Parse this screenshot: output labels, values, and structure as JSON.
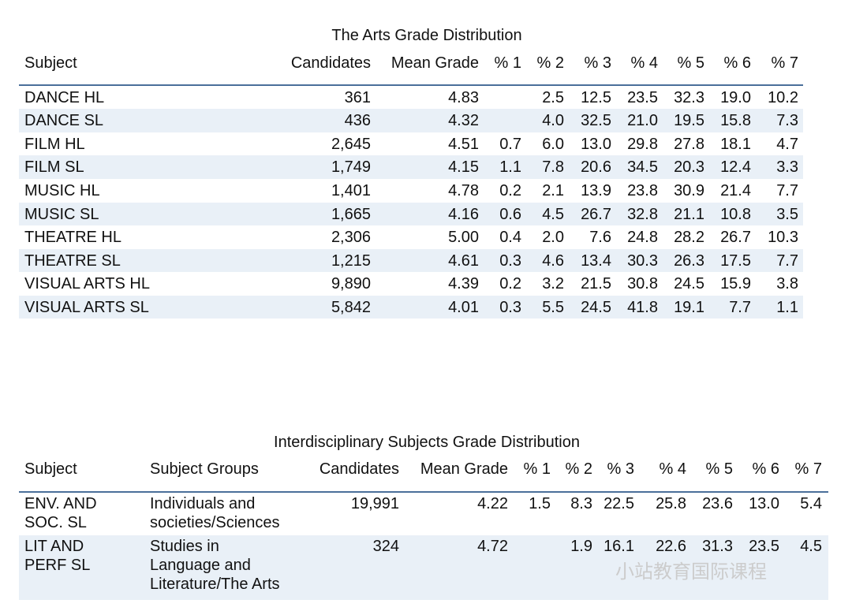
{
  "tables": [
    {
      "title": "The Arts Grade Distribution",
      "header": [
        "Subject",
        "Candidates",
        "Mean Grade",
        "% 1",
        "% 2",
        "% 3",
        "% 4",
        "% 5",
        "% 6",
        "% 7"
      ],
      "rows": [
        [
          "DANCE HL",
          "361",
          "4.83",
          null,
          "2.5",
          "12.5",
          "23.5",
          "32.3",
          "19.0",
          "10.2"
        ],
        [
          "DANCE SL",
          "436",
          "4.32",
          null,
          "4.0",
          "32.5",
          "21.0",
          "19.5",
          "15.8",
          "7.3"
        ],
        [
          "FILM HL",
          "2,645",
          "4.51",
          "0.7",
          "6.0",
          "13.0",
          "29.8",
          "27.8",
          "18.1",
          "4.7"
        ],
        [
          "FILM SL",
          "1,749",
          "4.15",
          "1.1",
          "7.8",
          "20.6",
          "34.5",
          "20.3",
          "12.4",
          "3.3"
        ],
        [
          "MUSIC HL",
          "1,401",
          "4.78",
          "0.2",
          "2.1",
          "13.9",
          "23.8",
          "30.9",
          "21.4",
          "7.7"
        ],
        [
          "MUSIC SL",
          "1,665",
          "4.16",
          "0.6",
          "4.5",
          "26.7",
          "32.8",
          "21.1",
          "10.8",
          "3.5"
        ],
        [
          "THEATRE HL",
          "2,306",
          "5.00",
          "0.4",
          "2.0",
          "7.6",
          "24.8",
          "28.2",
          "26.7",
          "10.3"
        ],
        [
          "THEATRE SL",
          "1,215",
          "4.61",
          "0.3",
          "4.6",
          "13.4",
          "30.3",
          "26.3",
          "17.5",
          "7.7"
        ],
        [
          "VISUAL ARTS HL",
          "9,890",
          "4.39",
          "0.2",
          "3.2",
          "21.5",
          "30.8",
          "24.5",
          "15.9",
          "3.8"
        ],
        [
          "VISUAL ARTS SL",
          "5,842",
          "4.01",
          "0.3",
          "5.5",
          "24.5",
          "41.8",
          "19.1",
          "7.7",
          "1.1"
        ]
      ]
    },
    {
      "title": "Interdisciplinary Subjects Grade Distribution",
      "header": [
        "Subject",
        "Subject Groups",
        "Candidates",
        "Mean Grade",
        "% 1",
        "% 2",
        "% 3",
        "% 4",
        "% 5",
        "% 6",
        "% 7"
      ],
      "rows": [
        [
          "ENV. AND\nSOC. SL",
          "Individuals and\nsocieties/Sciences",
          "19,991",
          "4.22",
          "1.5",
          "8.3",
          "22.5",
          "25.8",
          "23.6",
          "13.0",
          "5.4"
        ],
        [
          "LIT AND\nPERF SL",
          "Studies in\nLanguage and\nLiterature/The Arts",
          "324",
          "4.72",
          null,
          "1.9",
          "16.1",
          "22.6",
          "31.3",
          "23.5",
          "4.5"
        ]
      ]
    }
  ],
  "watermark": "小站教育国际课程"
}
